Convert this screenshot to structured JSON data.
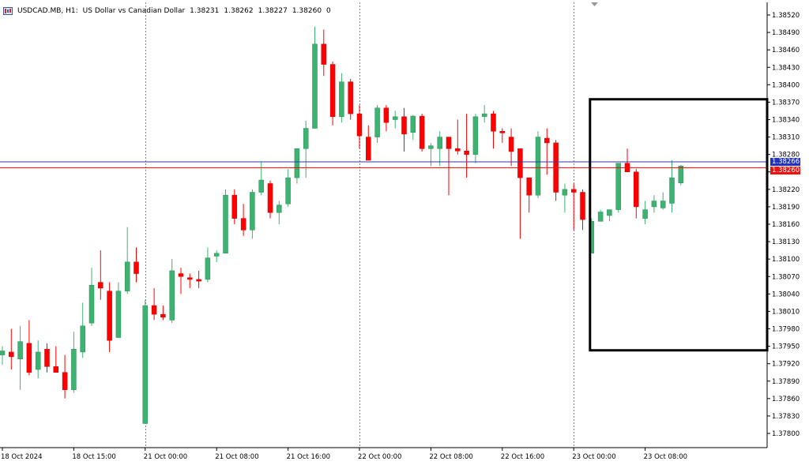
{
  "header": {
    "symbol_timeframe": "USDCAD.MB, H1:",
    "description": "US Dollar vs Canadian Dollar",
    "ohlc": [
      "1.38231",
      "1.38262",
      "1.38227",
      "1.38260"
    ],
    "extra": "0"
  },
  "colors": {
    "bull": "#3cb371",
    "bear": "#ff0000",
    "grid": "#808080",
    "bid_line": "#ff0000",
    "ask_line": "#3333aa",
    "highlight_box": "#000000"
  },
  "price_tags": {
    "ask": "1.38266",
    "bid": "1.38260"
  },
  "chart_data": {
    "type": "candlestick",
    "title": "USDCAD.MB, H1: US Dollar vs Canadian Dollar",
    "ylim": [
      1.3778,
      1.3854
    ],
    "y_ticks": [
      "1.38520",
      "1.38490",
      "1.38460",
      "1.38430",
      "1.38400",
      "1.38370",
      "1.38340",
      "1.38310",
      "1.38280",
      "1.38250",
      "1.38220",
      "1.38190",
      "1.38160",
      "1.38130",
      "1.38100",
      "1.38070",
      "1.38040",
      "1.38010",
      "1.37980",
      "1.37950",
      "1.37920",
      "1.37890",
      "1.37860",
      "1.37830",
      "1.37800"
    ],
    "x_ticks": [
      "18 Oct 2024",
      "18 Oct 15:00",
      "21 Oct 00:00",
      "21 Oct 08:00",
      "21 Oct 16:00",
      "22 Oct 00:00",
      "22 Oct 08:00",
      "22 Oct 16:00",
      "23 Oct 00:00",
      "23 Oct 08:00"
    ],
    "session_separators": [
      "21 Oct 00:00",
      "22 Oct 00:00",
      "23 Oct 00:00"
    ],
    "current_bid": 1.3826,
    "current_ask": 1.38266,
    "highlight_region": {
      "from_bar": 66,
      "price_top": 1.38375,
      "price_bottom": 1.37943
    },
    "candles": [
      {
        "o": 1.37935,
        "h": 1.3795,
        "l": 1.37918,
        "c": 1.37942
      },
      {
        "o": 1.3794,
        "h": 1.3798,
        "l": 1.3791,
        "c": 1.37932
      },
      {
        "o": 1.37928,
        "h": 1.37985,
        "l": 1.37875,
        "c": 1.37958
      },
      {
        "o": 1.37955,
        "h": 1.37995,
        "l": 1.379,
        "c": 1.37905
      },
      {
        "o": 1.3791,
        "h": 1.3796,
        "l": 1.37895,
        "c": 1.3794
      },
      {
        "o": 1.37945,
        "h": 1.37955,
        "l": 1.37905,
        "c": 1.37915
      },
      {
        "o": 1.37915,
        "h": 1.3795,
        "l": 1.37905,
        "c": 1.37905
      },
      {
        "o": 1.37905,
        "h": 1.37935,
        "l": 1.3786,
        "c": 1.37875
      },
      {
        "o": 1.37875,
        "h": 1.37975,
        "l": 1.3787,
        "c": 1.37945
      },
      {
        "o": 1.3794,
        "h": 1.38025,
        "l": 1.3793,
        "c": 1.37985
      },
      {
        "o": 1.3799,
        "h": 1.38085,
        "l": 1.37985,
        "c": 1.38055
      },
      {
        "o": 1.3806,
        "h": 1.38115,
        "l": 1.3803,
        "c": 1.3805
      },
      {
        "o": 1.38045,
        "h": 1.3806,
        "l": 1.3794,
        "c": 1.3796
      },
      {
        "o": 1.37965,
        "h": 1.3806,
        "l": 1.37965,
        "c": 1.38045
      },
      {
        "o": 1.38045,
        "h": 1.38155,
        "l": 1.3804,
        "c": 1.38095
      },
      {
        "o": 1.38095,
        "h": 1.3812,
        "l": 1.3806,
        "c": 1.38075
      },
      {
        "o": 1.37817,
        "h": 1.3803,
        "l": 1.37817,
        "c": 1.3802
      },
      {
        "o": 1.3802,
        "h": 1.3805,
        "l": 1.37995,
        "c": 1.38005
      },
      {
        "o": 1.38005,
        "h": 1.3802,
        "l": 1.37995,
        "c": 1.38
      },
      {
        "o": 1.37995,
        "h": 1.381,
        "l": 1.3799,
        "c": 1.3808
      },
      {
        "o": 1.38075,
        "h": 1.38085,
        "l": 1.3804,
        "c": 1.3807
      },
      {
        "o": 1.38068,
        "h": 1.38075,
        "l": 1.3805,
        "c": 1.38065
      },
      {
        "o": 1.38065,
        "h": 1.3808,
        "l": 1.3805,
        "c": 1.38062
      },
      {
        "o": 1.38065,
        "h": 1.3812,
        "l": 1.3806,
        "c": 1.38102
      },
      {
        "o": 1.38105,
        "h": 1.38115,
        "l": 1.38095,
        "c": 1.3811
      },
      {
        "o": 1.3811,
        "h": 1.3822,
        "l": 1.3811,
        "c": 1.3821
      },
      {
        "o": 1.3821,
        "h": 1.3822,
        "l": 1.3816,
        "c": 1.3817
      },
      {
        "o": 1.3817,
        "h": 1.38195,
        "l": 1.3814,
        "c": 1.3815
      },
      {
        "o": 1.3815,
        "h": 1.3822,
        "l": 1.38135,
        "c": 1.38215
      },
      {
        "o": 1.38215,
        "h": 1.38268,
        "l": 1.3821,
        "c": 1.38236
      },
      {
        "o": 1.3823,
        "h": 1.38235,
        "l": 1.3817,
        "c": 1.3818
      },
      {
        "o": 1.3818,
        "h": 1.382,
        "l": 1.3816,
        "c": 1.38193
      },
      {
        "o": 1.38195,
        "h": 1.38255,
        "l": 1.3819,
        "c": 1.3824
      },
      {
        "o": 1.3824,
        "h": 1.38285,
        "l": 1.3823,
        "c": 1.3829
      },
      {
        "o": 1.3829,
        "h": 1.38338,
        "l": 1.3824,
        "c": 1.38325
      },
      {
        "o": 1.38325,
        "h": 1.385,
        "l": 1.38325,
        "c": 1.3847
      },
      {
        "o": 1.3847,
        "h": 1.38495,
        "l": 1.38415,
        "c": 1.38435
      },
      {
        "o": 1.38435,
        "h": 1.3844,
        "l": 1.3833,
        "c": 1.38345
      },
      {
        "o": 1.38345,
        "h": 1.3842,
        "l": 1.38335,
        "c": 1.38405
      },
      {
        "o": 1.38405,
        "h": 1.3841,
        "l": 1.3834,
        "c": 1.3835
      },
      {
        "o": 1.3835,
        "h": 1.38365,
        "l": 1.3829,
        "c": 1.38312
      },
      {
        "o": 1.3831,
        "h": 1.3833,
        "l": 1.3827,
        "c": 1.3827
      },
      {
        "o": 1.3831,
        "h": 1.38365,
        "l": 1.383,
        "c": 1.3836
      },
      {
        "o": 1.3836,
        "h": 1.38365,
        "l": 1.3832,
        "c": 1.38335
      },
      {
        "o": 1.3834,
        "h": 1.38355,
        "l": 1.38325,
        "c": 1.38345
      },
      {
        "o": 1.38345,
        "h": 1.3836,
        "l": 1.38285,
        "c": 1.38315
      },
      {
        "o": 1.38318,
        "h": 1.38348,
        "l": 1.38305,
        "c": 1.38346
      },
      {
        "o": 1.38346,
        "h": 1.3835,
        "l": 1.38285,
        "c": 1.3829
      },
      {
        "o": 1.3829,
        "h": 1.383,
        "l": 1.3826,
        "c": 1.38295
      },
      {
        "o": 1.3829,
        "h": 1.3832,
        "l": 1.3826,
        "c": 1.3831
      },
      {
        "o": 1.3831,
        "h": 1.3831,
        "l": 1.3821,
        "c": 1.3829
      },
      {
        "o": 1.3829,
        "h": 1.3834,
        "l": 1.3828,
        "c": 1.38286
      },
      {
        "o": 1.38286,
        "h": 1.3835,
        "l": 1.3824,
        "c": 1.3828
      },
      {
        "o": 1.3828,
        "h": 1.3835,
        "l": 1.38265,
        "c": 1.38345
      },
      {
        "o": 1.38345,
        "h": 1.38365,
        "l": 1.38335,
        "c": 1.3835
      },
      {
        "o": 1.3835,
        "h": 1.38355,
        "l": 1.3829,
        "c": 1.3832
      },
      {
        "o": 1.3832,
        "h": 1.38325,
        "l": 1.383,
        "c": 1.38317
      },
      {
        "o": 1.3831,
        "h": 1.38325,
        "l": 1.3826,
        "c": 1.38285
      },
      {
        "o": 1.3829,
        "h": 1.3829,
        "l": 1.38135,
        "c": 1.3824
      },
      {
        "o": 1.3824,
        "h": 1.3824,
        "l": 1.3818,
        "c": 1.3821
      },
      {
        "o": 1.3821,
        "h": 1.3832,
        "l": 1.38205,
        "c": 1.3831
      },
      {
        "o": 1.38308,
        "h": 1.38325,
        "l": 1.38245,
        "c": 1.383
      },
      {
        "o": 1.383,
        "h": 1.38305,
        "l": 1.382,
        "c": 1.38215
      },
      {
        "o": 1.3821,
        "h": 1.3823,
        "l": 1.3818,
        "c": 1.3822
      },
      {
        "o": 1.3822,
        "h": 1.3823,
        "l": 1.3815,
        "c": 1.38215
      },
      {
        "o": 1.38215,
        "h": 1.3822,
        "l": 1.3815,
        "c": 1.38168
      },
      {
        "o": 1.3811,
        "h": 1.3817,
        "l": 1.3811,
        "c": 1.38165
      },
      {
        "o": 1.38165,
        "h": 1.38185,
        "l": 1.38165,
        "c": 1.38181
      },
      {
        "o": 1.38175,
        "h": 1.38185,
        "l": 1.38165,
        "c": 1.38185
      },
      {
        "o": 1.38185,
        "h": 1.38265,
        "l": 1.3818,
        "c": 1.38265
      },
      {
        "o": 1.38265,
        "h": 1.3829,
        "l": 1.3825,
        "c": 1.3825
      },
      {
        "o": 1.3825,
        "h": 1.38255,
        "l": 1.3817,
        "c": 1.3819
      },
      {
        "o": 1.3817,
        "h": 1.382,
        "l": 1.3816,
        "c": 1.38185
      },
      {
        "o": 1.3819,
        "h": 1.3821,
        "l": 1.3818,
        "c": 1.382
      },
      {
        "o": 1.38188,
        "h": 1.38215,
        "l": 1.38185,
        "c": 1.382
      },
      {
        "o": 1.38196,
        "h": 1.3827,
        "l": 1.3818,
        "c": 1.3824
      },
      {
        "o": 1.38231,
        "h": 1.38262,
        "l": 1.38227,
        "c": 1.3826
      }
    ]
  }
}
